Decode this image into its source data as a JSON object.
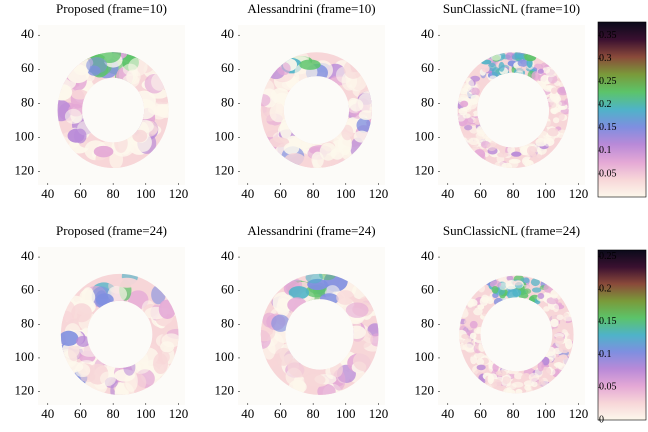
{
  "chart_data": [
    {
      "type": "image",
      "title": "Proposed (frame=10)",
      "xlim": [
        34,
        124
      ],
      "ylim": [
        128,
        34
      ],
      "xticks": [
        40,
        60,
        80,
        100,
        120
      ],
      "yticks": [
        40,
        60,
        80,
        100,
        120
      ]
    },
    {
      "type": "image",
      "title": "Alessandrini (frame=10)",
      "xlim": [
        34,
        124
      ],
      "ylim": [
        128,
        34
      ],
      "xticks": [
        40,
        60,
        80,
        100,
        120
      ],
      "yticks": [
        40,
        60,
        80,
        100,
        120
      ]
    },
    {
      "type": "image",
      "title": "SunClassicNL (frame=10)",
      "xlim": [
        34,
        124
      ],
      "ylim": [
        128,
        34
      ],
      "xticks": [
        40,
        60,
        80,
        100,
        120
      ],
      "yticks": [
        40,
        60,
        80,
        100,
        120
      ]
    },
    {
      "type": "colorbar",
      "clim": [
        0,
        0.38
      ],
      "ticks": [
        0.05,
        0.1,
        0.15,
        0.2,
        0.25,
        0.3,
        0.35
      ],
      "colormap": [
        "#fdf8ec",
        "#f7d6d8",
        "#e4a8d6",
        "#b98ad8",
        "#7f8fe0",
        "#4fb3c8",
        "#5cc46a",
        "#7a9a3a",
        "#8a4a3a",
        "#3a1030",
        "#0a0a1a"
      ]
    },
    {
      "type": "image",
      "title": "Proposed (frame=24)",
      "xlim": [
        34,
        124
      ],
      "ylim": [
        128,
        34
      ],
      "xticks": [
        40,
        60,
        80,
        100,
        120
      ],
      "yticks": [
        40,
        60,
        80,
        100,
        120
      ]
    },
    {
      "type": "image",
      "title": "Alessandrini (frame=24)",
      "xlim": [
        34,
        124
      ],
      "ylim": [
        128,
        34
      ],
      "xticks": [
        40,
        60,
        80,
        100,
        120
      ],
      "yticks": [
        40,
        60,
        80,
        100,
        120
      ]
    },
    {
      "type": "image",
      "title": "SunClassicNL (frame=24)",
      "xlim": [
        34,
        124
      ],
      "ylim": [
        128,
        34
      ],
      "xticks": [
        40,
        60,
        80,
        100,
        120
      ],
      "yticks": [
        40,
        60,
        80,
        100,
        120
      ]
    },
    {
      "type": "colorbar",
      "clim": [
        0,
        0.26
      ],
      "ticks": [
        0,
        0.05,
        0.1,
        0.15,
        0.2,
        0.25
      ],
      "colormap": [
        "#fdf8ec",
        "#f7d6d8",
        "#e4a8d6",
        "#b98ad8",
        "#7f8fe0",
        "#4fb3c8",
        "#5cc46a",
        "#7a9a3a",
        "#8a4a3a",
        "#3a1030",
        "#0a0a1a"
      ]
    }
  ]
}
